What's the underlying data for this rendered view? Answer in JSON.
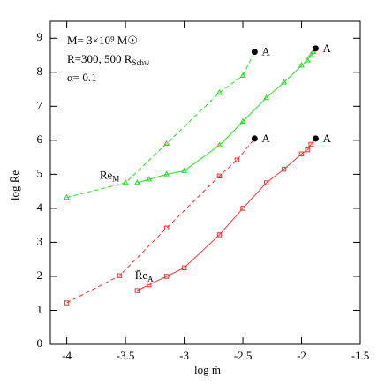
{
  "chart_data": {
    "type": "line",
    "xlabel": "log ṁ",
    "ylabel": "log R̄e",
    "xlim": [
      -4.14,
      -1.5
    ],
    "ylim": [
      0,
      9.5
    ],
    "xticks": [
      -4,
      -3.5,
      -3,
      -2.5,
      -2,
      -1.5
    ],
    "yticks": [
      0,
      1,
      2,
      3,
      4,
      5,
      6,
      7,
      8,
      9
    ],
    "series": [
      {
        "color": "#22dd22",
        "dash": true,
        "marker": "triangle",
        "x": [
          -4,
          -3.5,
          -3.15,
          -2.7,
          -2.5
        ],
        "values": [
          4.32,
          4.75,
          5.9,
          7.4,
          7.9
        ]
      },
      {
        "color": "#22dd22",
        "dash": false,
        "marker": "triangle",
        "x": [
          -3.4,
          -3.3,
          -3.15,
          -3,
          -2.7,
          -2.5,
          -2.3,
          -2.15,
          -2,
          -1.95,
          -1.92,
          -1.9
        ],
        "values": [
          4.75,
          4.85,
          5.0,
          5.1,
          5.85,
          6.55,
          7.25,
          7.7,
          8.2,
          8.35,
          8.5,
          8.6
        ]
      },
      {
        "color": "#ee3333",
        "dash": true,
        "marker": "square",
        "x": [
          -4,
          -3.55,
          -3.15,
          -2.7,
          -2.55
        ],
        "values": [
          1.22,
          2.02,
          3.42,
          4.95,
          5.42
        ]
      },
      {
        "color": "#ee3333",
        "dash": false,
        "marker": "square",
        "x": [
          -3.4,
          -3.3,
          -3.15,
          -3,
          -2.7,
          -2.5,
          -2.3,
          -2.15,
          -2,
          -1.95,
          -1.92
        ],
        "values": [
          1.58,
          1.75,
          2.0,
          2.25,
          3.22,
          4.0,
          4.75,
          5.15,
          5.6,
          5.72,
          5.88
        ]
      }
    ],
    "end_points": [
      {
        "text": "A",
        "x": -2.4,
        "y": 8.6,
        "from_series": 0
      },
      {
        "text": "A",
        "x": -1.88,
        "y": 8.7,
        "from_series": 1
      },
      {
        "text": "A",
        "x": -2.4,
        "y": 6.05,
        "from_series": 2
      },
      {
        "text": "A",
        "x": -1.88,
        "y": 6.05,
        "from_series": 3
      }
    ],
    "info_lines": [
      {
        "text": "M= 3×10⁹ M☉",
        "sub": ""
      },
      {
        "text": "R=300, 500 R",
        "sub": "Schw"
      },
      {
        "text": "α= 0.1",
        "sub": ""
      }
    ],
    "annotations": [
      {
        "text": "R̄e",
        "sub": "M",
        "x": -3.72,
        "y": 4.95
      },
      {
        "text": "R̄e",
        "sub": "A",
        "x": -3.42,
        "y": 2.0
      }
    ]
  }
}
